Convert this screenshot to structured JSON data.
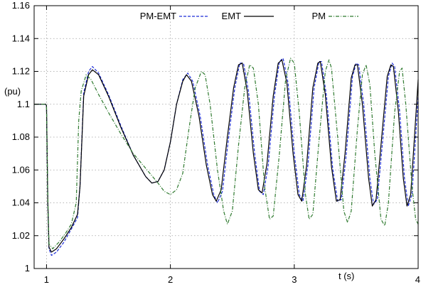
{
  "chart_data": {
    "type": "line",
    "title": "",
    "xlabel": "t (s)",
    "ylabel": "(pu)",
    "xlim": [
      0.9,
      4.0
    ],
    "ylim": [
      1.0,
      1.16
    ],
    "x_ticks": [
      1,
      2,
      3,
      4
    ],
    "x_tick_labels": [
      "1",
      "2",
      "3",
      "4"
    ],
    "y_ticks": [
      1.0,
      1.02,
      1.04,
      1.06,
      1.08,
      1.1,
      1.12,
      1.14,
      1.16
    ],
    "y_tick_labels": [
      "1",
      "1.02",
      "1.04",
      "1.06",
      "1.08",
      "1.1",
      "1.12",
      "1.14",
      "1.16"
    ],
    "grid": true,
    "legend_position": "top",
    "series": [
      {
        "name": "PM-EMT",
        "color": "#1f2fd8",
        "dash": "dashed",
        "points": [
          [
            0.9,
            1.1
          ],
          [
            0.995,
            1.1
          ],
          [
            1.0,
            1.099
          ],
          [
            1.01,
            1.04
          ],
          [
            1.02,
            1.012
          ],
          [
            1.04,
            1.008
          ],
          [
            1.08,
            1.01
          ],
          [
            1.14,
            1.016
          ],
          [
            1.2,
            1.024
          ],
          [
            1.25,
            1.031
          ],
          [
            1.27,
            1.05
          ],
          [
            1.3,
            1.107
          ],
          [
            1.34,
            1.12
          ],
          [
            1.37,
            1.123
          ],
          [
            1.42,
            1.119
          ],
          [
            1.5,
            1.106
          ],
          [
            1.6,
            1.087
          ],
          [
            1.7,
            1.069
          ],
          [
            1.8,
            1.056
          ],
          [
            1.85,
            1.052
          ],
          [
            1.9,
            1.053
          ],
          [
            1.95,
            1.06
          ],
          [
            2.0,
            1.077
          ],
          [
            2.05,
            1.1
          ],
          [
            2.1,
            1.115
          ],
          [
            2.14,
            1.119
          ],
          [
            2.18,
            1.114
          ],
          [
            2.24,
            1.093
          ],
          [
            2.3,
            1.063
          ],
          [
            2.35,
            1.045
          ],
          [
            2.38,
            1.04
          ],
          [
            2.42,
            1.047
          ],
          [
            2.47,
            1.08
          ],
          [
            2.52,
            1.11
          ],
          [
            2.56,
            1.125
          ],
          [
            2.59,
            1.125
          ],
          [
            2.63,
            1.108
          ],
          [
            2.68,
            1.07
          ],
          [
            2.72,
            1.047
          ],
          [
            2.75,
            1.045
          ],
          [
            2.79,
            1.063
          ],
          [
            2.84,
            1.105
          ],
          [
            2.88,
            1.126
          ],
          [
            2.91,
            1.128
          ],
          [
            2.95,
            1.113
          ],
          [
            3.0,
            1.07
          ],
          [
            3.04,
            1.045
          ],
          [
            3.07,
            1.041
          ],
          [
            3.11,
            1.063
          ],
          [
            3.16,
            1.11
          ],
          [
            3.2,
            1.126
          ],
          [
            3.22,
            1.126
          ],
          [
            3.26,
            1.105
          ],
          [
            3.31,
            1.061
          ],
          [
            3.35,
            1.041
          ],
          [
            3.38,
            1.042
          ],
          [
            3.42,
            1.07
          ],
          [
            3.47,
            1.117
          ],
          [
            3.5,
            1.125
          ],
          [
            3.52,
            1.124
          ],
          [
            3.56,
            1.1
          ],
          [
            3.61,
            1.055
          ],
          [
            3.64,
            1.039
          ],
          [
            3.67,
            1.042
          ],
          [
            3.71,
            1.075
          ],
          [
            3.76,
            1.117
          ],
          [
            3.79,
            1.125
          ],
          [
            3.81,
            1.123
          ],
          [
            3.85,
            1.096
          ],
          [
            3.89,
            1.055
          ],
          [
            3.92,
            1.038
          ],
          [
            3.95,
            1.045
          ],
          [
            3.98,
            1.08
          ],
          [
            4.0,
            1.105
          ]
        ]
      },
      {
        "name": "EMT",
        "color": "#000000",
        "dash": "solid",
        "points": [
          [
            0.9,
            1.1
          ],
          [
            0.995,
            1.1
          ],
          [
            1.0,
            1.099
          ],
          [
            1.01,
            1.04
          ],
          [
            1.02,
            1.013
          ],
          [
            1.04,
            1.01
          ],
          [
            1.08,
            1.012
          ],
          [
            1.14,
            1.018
          ],
          [
            1.2,
            1.025
          ],
          [
            1.25,
            1.033
          ],
          [
            1.27,
            1.05
          ],
          [
            1.3,
            1.105
          ],
          [
            1.34,
            1.118
          ],
          [
            1.37,
            1.121
          ],
          [
            1.42,
            1.118
          ],
          [
            1.5,
            1.105
          ],
          [
            1.6,
            1.086
          ],
          [
            1.7,
            1.069
          ],
          [
            1.8,
            1.056
          ],
          [
            1.85,
            1.052
          ],
          [
            1.9,
            1.053
          ],
          [
            1.95,
            1.06
          ],
          [
            2.0,
            1.077
          ],
          [
            2.05,
            1.1
          ],
          [
            2.1,
            1.114
          ],
          [
            2.13,
            1.118
          ],
          [
            2.17,
            1.114
          ],
          [
            2.23,
            1.093
          ],
          [
            2.29,
            1.063
          ],
          [
            2.34,
            1.045
          ],
          [
            2.37,
            1.041
          ],
          [
            2.41,
            1.048
          ],
          [
            2.46,
            1.08
          ],
          [
            2.51,
            1.11
          ],
          [
            2.55,
            1.124
          ],
          [
            2.58,
            1.125
          ],
          [
            2.62,
            1.108
          ],
          [
            2.67,
            1.07
          ],
          [
            2.71,
            1.048
          ],
          [
            2.74,
            1.046
          ],
          [
            2.78,
            1.064
          ],
          [
            2.83,
            1.105
          ],
          [
            2.87,
            1.125
          ],
          [
            2.9,
            1.127
          ],
          [
            2.94,
            1.113
          ],
          [
            2.99,
            1.07
          ],
          [
            3.03,
            1.045
          ],
          [
            3.06,
            1.041
          ],
          [
            3.1,
            1.063
          ],
          [
            3.15,
            1.11
          ],
          [
            3.19,
            1.125
          ],
          [
            3.21,
            1.126
          ],
          [
            3.25,
            1.106
          ],
          [
            3.3,
            1.062
          ],
          [
            3.34,
            1.041
          ],
          [
            3.37,
            1.042
          ],
          [
            3.41,
            1.07
          ],
          [
            3.46,
            1.116
          ],
          [
            3.49,
            1.124
          ],
          [
            3.51,
            1.124
          ],
          [
            3.55,
            1.1
          ],
          [
            3.6,
            1.055
          ],
          [
            3.63,
            1.038
          ],
          [
            3.66,
            1.042
          ],
          [
            3.7,
            1.075
          ],
          [
            3.75,
            1.117
          ],
          [
            3.78,
            1.124
          ],
          [
            3.8,
            1.123
          ],
          [
            3.84,
            1.096
          ],
          [
            3.88,
            1.055
          ],
          [
            3.91,
            1.038
          ],
          [
            3.94,
            1.045
          ],
          [
            3.97,
            1.08
          ],
          [
            4.0,
            1.115
          ]
        ]
      },
      {
        "name": "PM",
        "color": "#2f7a2f",
        "dash": "dashdot",
        "points": [
          [
            0.9,
            1.1
          ],
          [
            0.995,
            1.1
          ],
          [
            1.0,
            1.099
          ],
          [
            1.01,
            1.045
          ],
          [
            1.02,
            1.015
          ],
          [
            1.05,
            1.012
          ],
          [
            1.1,
            1.016
          ],
          [
            1.15,
            1.021
          ],
          [
            1.2,
            1.027
          ],
          [
            1.24,
            1.04
          ],
          [
            1.26,
            1.09
          ],
          [
            1.28,
            1.108
          ],
          [
            1.32,
            1.118
          ],
          [
            1.36,
            1.115
          ],
          [
            1.42,
            1.106
          ],
          [
            1.5,
            1.095
          ],
          [
            1.6,
            1.082
          ],
          [
            1.7,
            1.07
          ],
          [
            1.8,
            1.061
          ],
          [
            1.9,
            1.052
          ],
          [
            1.95,
            1.047
          ],
          [
            2.0,
            1.045
          ],
          [
            2.05,
            1.048
          ],
          [
            2.1,
            1.058
          ],
          [
            2.15,
            1.085
          ],
          [
            2.2,
            1.11
          ],
          [
            2.25,
            1.12
          ],
          [
            2.28,
            1.118
          ],
          [
            2.32,
            1.1
          ],
          [
            2.38,
            1.06
          ],
          [
            2.43,
            1.035
          ],
          [
            2.46,
            1.027
          ],
          [
            2.5,
            1.035
          ],
          [
            2.55,
            1.075
          ],
          [
            2.6,
            1.11
          ],
          [
            2.64,
            1.124
          ],
          [
            2.67,
            1.122
          ],
          [
            2.71,
            1.1
          ],
          [
            2.76,
            1.05
          ],
          [
            2.8,
            1.03
          ],
          [
            2.83,
            1.032
          ],
          [
            2.88,
            1.07
          ],
          [
            2.93,
            1.115
          ],
          [
            2.97,
            1.128
          ],
          [
            3.0,
            1.125
          ],
          [
            3.04,
            1.095
          ],
          [
            3.09,
            1.045
          ],
          [
            3.12,
            1.03
          ],
          [
            3.15,
            1.033
          ],
          [
            3.2,
            1.078
          ],
          [
            3.25,
            1.12
          ],
          [
            3.28,
            1.127
          ],
          [
            3.3,
            1.122
          ],
          [
            3.35,
            1.08
          ],
          [
            3.4,
            1.035
          ],
          [
            3.43,
            1.028
          ],
          [
            3.46,
            1.035
          ],
          [
            3.51,
            1.085
          ],
          [
            3.55,
            1.118
          ],
          [
            3.58,
            1.124
          ],
          [
            3.61,
            1.112
          ],
          [
            3.65,
            1.07
          ],
          [
            3.7,
            1.03
          ],
          [
            3.73,
            1.026
          ],
          [
            3.76,
            1.04
          ],
          [
            3.81,
            1.095
          ],
          [
            3.85,
            1.12
          ],
          [
            3.87,
            1.122
          ],
          [
            3.9,
            1.1
          ],
          [
            3.95,
            1.05
          ],
          [
            3.98,
            1.03
          ],
          [
            4.0,
            1.027
          ]
        ]
      }
    ]
  }
}
